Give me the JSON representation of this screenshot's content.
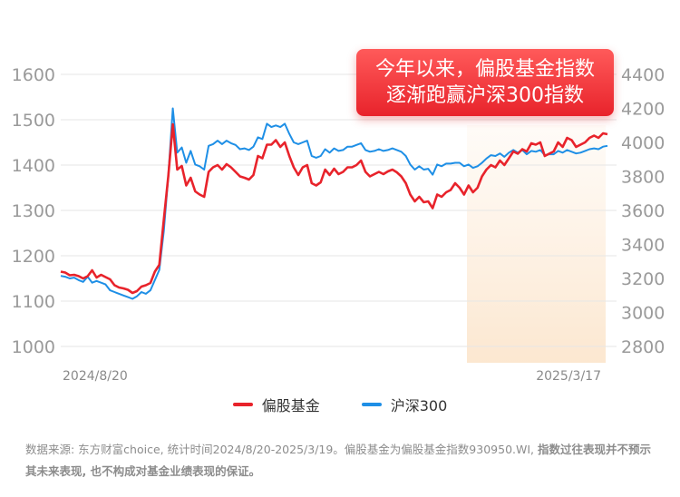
{
  "chart_data": {
    "type": "line",
    "title": "",
    "x_start_label": "2024/8/20",
    "x_end_label": "2025/3/17",
    "left_axis": {
      "ticks": [
        1000,
        1100,
        1200,
        1300,
        1400,
        1500,
        1600
      ],
      "ylim": [
        1000,
        1600
      ]
    },
    "right_axis": {
      "ticks": [
        2800,
        3000,
        3200,
        3400,
        3600,
        3800,
        4000,
        4200,
        4400
      ],
      "ylim": [
        2800,
        4400
      ]
    },
    "highlight_region": "2025/1 – 2025/3/17",
    "series": [
      {
        "name": "偏股基金",
        "axis": "left",
        "color": "#e8232b",
        "values": [
          1165,
          1163,
          1157,
          1158,
          1155,
          1150,
          1155,
          1168,
          1152,
          1158,
          1153,
          1148,
          1135,
          1130,
          1128,
          1125,
          1118,
          1122,
          1132,
          1135,
          1140,
          1165,
          1180,
          1280,
          1375,
          1490,
          1390,
          1398,
          1355,
          1372,
          1342,
          1335,
          1330,
          1385,
          1395,
          1400,
          1390,
          1402,
          1395,
          1385,
          1375,
          1372,
          1368,
          1378,
          1420,
          1415,
          1445,
          1445,
          1455,
          1440,
          1450,
          1420,
          1395,
          1378,
          1395,
          1400,
          1360,
          1355,
          1362,
          1390,
          1378,
          1392,
          1380,
          1385,
          1395,
          1395,
          1400,
          1410,
          1385,
          1375,
          1380,
          1385,
          1380,
          1386,
          1390,
          1384,
          1375,
          1360,
          1335,
          1320,
          1330,
          1318,
          1320,
          1305,
          1335,
          1330,
          1340,
          1345,
          1360,
          1350,
          1335,
          1355,
          1340,
          1350,
          1375,
          1390,
          1400,
          1395,
          1410,
          1400,
          1415,
          1430,
          1425,
          1435,
          1430,
          1448,
          1445,
          1450,
          1420,
          1425,
          1430,
          1450,
          1440,
          1460,
          1455,
          1440,
          1445,
          1450,
          1460,
          1465,
          1460,
          1470,
          1468
        ]
      },
      {
        "name": "沪深300",
        "axis": "right",
        "color": "#1e8fe6",
        "values": [
          3215,
          3210,
          3200,
          3205,
          3190,
          3180,
          3210,
          3175,
          3185,
          3175,
          3165,
          3130,
          3120,
          3110,
          3100,
          3090,
          3080,
          3095,
          3120,
          3110,
          3130,
          3190,
          3250,
          3480,
          3800,
          4200,
          3940,
          3970,
          3880,
          3950,
          3870,
          3860,
          3840,
          3980,
          3990,
          4010,
          3990,
          4010,
          3995,
          3985,
          3960,
          3965,
          3955,
          3975,
          4030,
          4020,
          4110,
          4090,
          4100,
          4090,
          4110,
          4050,
          4000,
          3990,
          4000,
          4010,
          3920,
          3910,
          3920,
          3960,
          3940,
          3965,
          3950,
          3955,
          3975,
          3975,
          3985,
          3995,
          3955,
          3945,
          3950,
          3960,
          3950,
          3955,
          3965,
          3955,
          3945,
          3920,
          3870,
          3840,
          3860,
          3840,
          3845,
          3810,
          3870,
          3860,
          3875,
          3875,
          3880,
          3880,
          3860,
          3870,
          3850,
          3860,
          3880,
          3905,
          3925,
          3920,
          3935,
          3915,
          3940,
          3955,
          3940,
          3955,
          3930,
          3950,
          3945,
          3955,
          3925,
          3930,
          3930,
          3950,
          3940,
          3955,
          3945,
          3935,
          3940,
          3950,
          3960,
          3965,
          3960,
          3975,
          3980
        ]
      }
    ]
  },
  "callout": {
    "line1": "今年以来，偏股基金指数",
    "line2": "逐渐跑赢沪深300指数"
  },
  "legend": {
    "items": [
      {
        "label": "偏股基金",
        "color": "#e8232b"
      },
      {
        "label": "沪深300",
        "color": "#1e8fe6"
      }
    ]
  },
  "footnote": {
    "normal": "数据来源: 东方财富choice, 统计时间2024/8/20-2025/3/19。偏股基金为偏股基金指数930950.WI, ",
    "bold": "指数过往表现并不预示其未来表现, 也不构成对基金业绩表现的保证。"
  }
}
